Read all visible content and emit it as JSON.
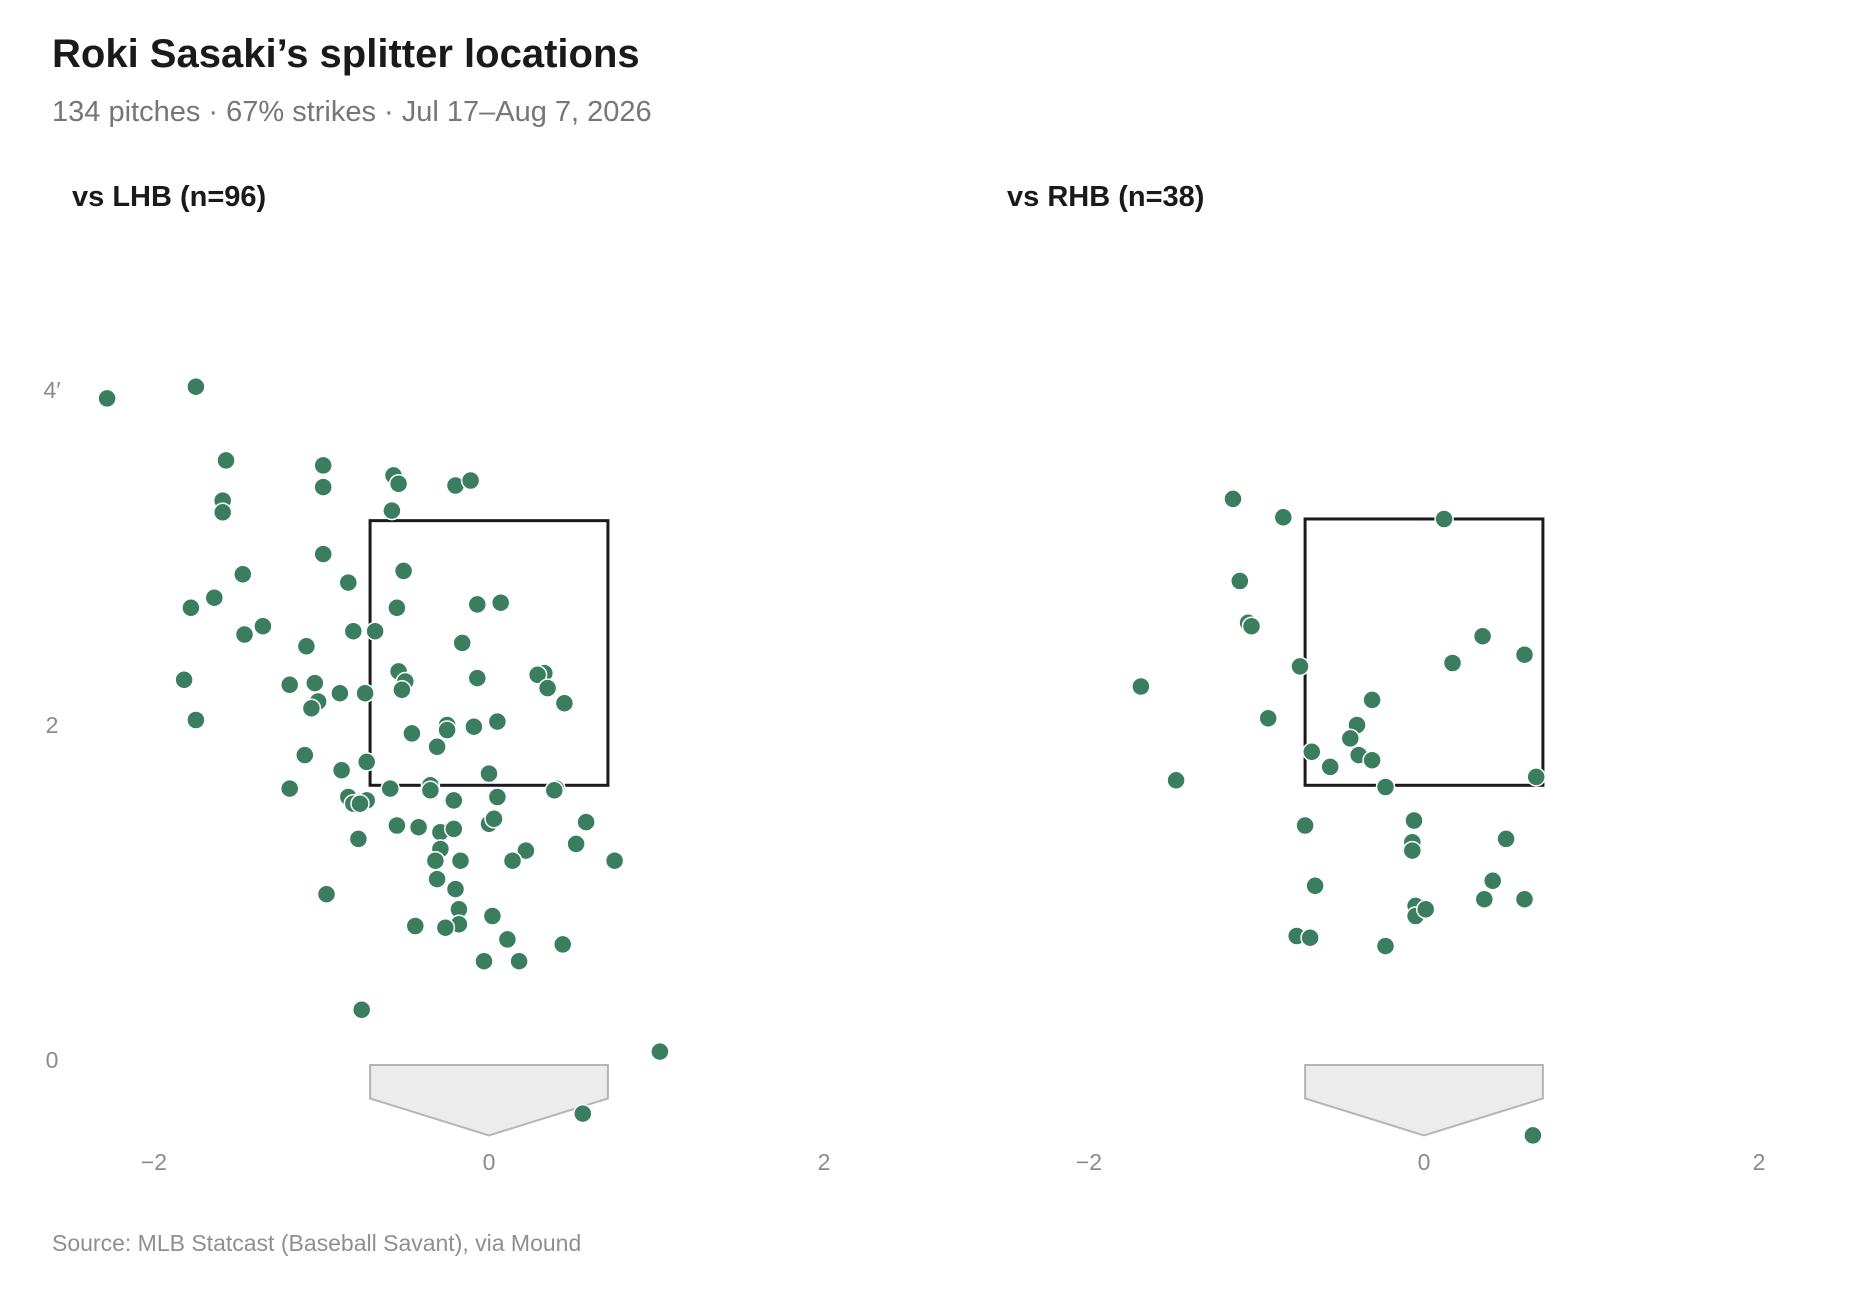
{
  "title": "Roki Sasaki’s splitter locations",
  "subtitle": "134 pitches · 67% strikes · Jul 17–Aug 7, 2026",
  "source": "Source: MLB Statcast (Baseball Savant), via Mound",
  "colors": {
    "point": "#3a7d5f",
    "zone": "#1a1a1a",
    "plate_fill": "#ececec",
    "plate_stroke": "#b5b5b5"
  },
  "chart_data": [
    {
      "type": "scatter",
      "title": "vs LHB (n=96)",
      "xlim": [
        -2.0,
        2.0
      ],
      "ylim": [
        -0.45,
        4.1
      ],
      "x_ticks": [
        {
          "value": -2,
          "label": "−2"
        },
        {
          "value": 0,
          "label": "0"
        },
        {
          "value": 2,
          "label": "2"
        }
      ],
      "y_ticks": [
        {
          "value": 0,
          "label": "0"
        },
        {
          "value": 2,
          "label": "2"
        },
        {
          "value": 4,
          "label": "4′"
        }
      ],
      "strike_zone": {
        "x": [
          -0.71,
          0.71
        ],
        "z": [
          1.64,
          3.22
        ]
      },
      "points": [
        [
          -2.28,
          3.95
        ],
        [
          -1.75,
          4.02
        ],
        [
          -1.57,
          3.58
        ],
        [
          -1.59,
          3.34
        ],
        [
          -1.59,
          3.27
        ],
        [
          -0.99,
          3.55
        ],
        [
          -0.99,
          3.42
        ],
        [
          -0.57,
          3.49
        ],
        [
          -0.54,
          3.44
        ],
        [
          -0.58,
          3.28
        ],
        [
          -0.2,
          3.43
        ],
        [
          -0.11,
          3.46
        ],
        [
          -0.99,
          3.02
        ],
        [
          -1.47,
          2.9
        ],
        [
          -0.84,
          2.85
        ],
        [
          -1.64,
          2.76
        ],
        [
          -1.78,
          2.7
        ],
        [
          -0.51,
          2.92
        ],
        [
          -0.55,
          2.7
        ],
        [
          -1.35,
          2.59
        ],
        [
          -1.46,
          2.54
        ],
        [
          -0.81,
          2.56
        ],
        [
          -0.68,
          2.56
        ],
        [
          -1.09,
          2.47
        ],
        [
          -0.07,
          2.72
        ],
        [
          0.07,
          2.73
        ],
        [
          -0.16,
          2.49
        ],
        [
          0.33,
          2.31
        ],
        [
          0.29,
          2.3
        ],
        [
          0.35,
          2.22
        ],
        [
          0.45,
          2.13
        ],
        [
          -0.54,
          2.32
        ],
        [
          -0.5,
          2.26
        ],
        [
          -0.52,
          2.21
        ],
        [
          -0.07,
          2.28
        ],
        [
          -1.19,
          2.24
        ],
        [
          -1.04,
          2.25
        ],
        [
          -0.89,
          2.19
        ],
        [
          -0.74,
          2.19
        ],
        [
          -1.82,
          2.27
        ],
        [
          -1.75,
          2.03
        ],
        [
          -1.02,
          2.14
        ],
        [
          -1.06,
          2.1
        ],
        [
          -0.46,
          1.95
        ],
        [
          -0.25,
          2.0
        ],
        [
          -0.25,
          1.97
        ],
        [
          -0.09,
          1.99
        ],
        [
          0.05,
          2.02
        ],
        [
          -0.31,
          1.87
        ],
        [
          -0.73,
          1.78
        ],
        [
          -0.88,
          1.73
        ],
        [
          -1.1,
          1.82
        ],
        [
          0.0,
          1.71
        ],
        [
          -1.19,
          1.62
        ],
        [
          -0.59,
          1.62
        ],
        [
          -0.35,
          1.64
        ],
        [
          -0.35,
          1.61
        ],
        [
          0.4,
          1.62
        ],
        [
          0.39,
          1.61
        ],
        [
          -0.84,
          1.57
        ],
        [
          -0.77,
          1.54
        ],
        [
          -0.73,
          1.55
        ],
        [
          -0.81,
          1.53
        ],
        [
          -0.21,
          1.55
        ],
        [
          0.05,
          1.57
        ],
        [
          -0.55,
          1.4
        ],
        [
          -0.42,
          1.39
        ],
        [
          -0.29,
          1.36
        ],
        [
          -0.21,
          1.38
        ],
        [
          0.0,
          1.41
        ],
        [
          0.03,
          1.44
        ],
        [
          0.58,
          1.42
        ],
        [
          0.52,
          1.29
        ],
        [
          0.75,
          1.19
        ],
        [
          -0.78,
          1.32
        ],
        [
          -0.29,
          1.26
        ],
        [
          0.22,
          1.25
        ],
        [
          0.14,
          1.19
        ],
        [
          -0.32,
          1.19
        ],
        [
          -0.17,
          1.19
        ],
        [
          -0.31,
          1.08
        ],
        [
          -0.2,
          1.02
        ],
        [
          -0.97,
          0.99
        ],
        [
          -0.18,
          0.9
        ],
        [
          -0.18,
          0.81
        ],
        [
          -0.44,
          0.8
        ],
        [
          -0.26,
          0.79
        ],
        [
          0.02,
          0.86
        ],
        [
          0.11,
          0.72
        ],
        [
          0.44,
          0.69
        ],
        [
          -0.03,
          0.59
        ],
        [
          0.18,
          0.59
        ],
        [
          -0.76,
          0.3
        ],
        [
          1.02,
          0.05
        ],
        [
          0.56,
          -0.32
        ],
        [
          -0.77,
          1.53
        ]
      ]
    },
    {
      "type": "scatter",
      "title": "vs RHB (n=38)",
      "xlim": [
        -2.0,
        2.0
      ],
      "ylim": [
        -0.45,
        4.1
      ],
      "x_ticks": [
        {
          "value": -2,
          "label": "−2"
        },
        {
          "value": 0,
          "label": "0"
        },
        {
          "value": 2,
          "label": "2"
        }
      ],
      "y_ticks": [],
      "strike_zone": {
        "x": [
          -0.71,
          0.71
        ],
        "z": [
          1.64,
          3.23
        ]
      },
      "points": [
        [
          -1.14,
          3.35
        ],
        [
          -0.84,
          3.24
        ],
        [
          0.12,
          3.23
        ],
        [
          -1.1,
          2.86
        ],
        [
          -1.05,
          2.61
        ],
        [
          -1.03,
          2.59
        ],
        [
          0.35,
          2.53
        ],
        [
          0.6,
          2.42
        ],
        [
          0.17,
          2.37
        ],
        [
          -0.74,
          2.35
        ],
        [
          -1.69,
          2.23
        ],
        [
          -0.31,
          2.15
        ],
        [
          -0.93,
          2.04
        ],
        [
          -0.4,
          2.0
        ],
        [
          -0.44,
          1.92
        ],
        [
          -0.67,
          1.84
        ],
        [
          -0.39,
          1.82
        ],
        [
          -0.31,
          1.79
        ],
        [
          -0.56,
          1.75
        ],
        [
          0.67,
          1.69
        ],
        [
          -1.48,
          1.67
        ],
        [
          -0.23,
          1.63
        ],
        [
          -0.71,
          1.4
        ],
        [
          -0.06,
          1.43
        ],
        [
          -0.07,
          1.3
        ],
        [
          -0.07,
          1.25
        ],
        [
          0.49,
          1.32
        ],
        [
          0.41,
          1.07
        ],
        [
          -0.65,
          1.04
        ],
        [
          0.36,
          0.96
        ],
        [
          0.6,
          0.96
        ],
        [
          -0.05,
          0.92
        ],
        [
          -0.05,
          0.86
        ],
        [
          0.01,
          0.9
        ],
        [
          -0.76,
          0.74
        ],
        [
          -0.68,
          0.73
        ],
        [
          -0.23,
          0.68
        ],
        [
          0.65,
          -0.45
        ]
      ]
    }
  ]
}
